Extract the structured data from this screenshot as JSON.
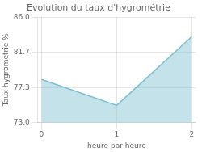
{
  "chart_data": {
    "type": "line",
    "title": "Evolution du taux d'hygrométrie",
    "x_label": "heure par heure",
    "y_label": "Taux hygrométrie %",
    "x": [
      0,
      1,
      2
    ],
    "values": [
      78.3,
      75.1,
      83.6
    ],
    "color": "#7abfcf",
    "xlim": [
      -0.05,
      2.05
    ],
    "xticks": [
      0,
      1,
      2
    ],
    "ylim": [
      73.0,
      86.0
    ],
    "yticks": [
      {
        "value": 73.0,
        "label": "73.0"
      },
      77.3,
      81.7,
      {
        "value": 86.0,
        "label": "86.0"
      }
    ],
    "grid": true
  }
}
